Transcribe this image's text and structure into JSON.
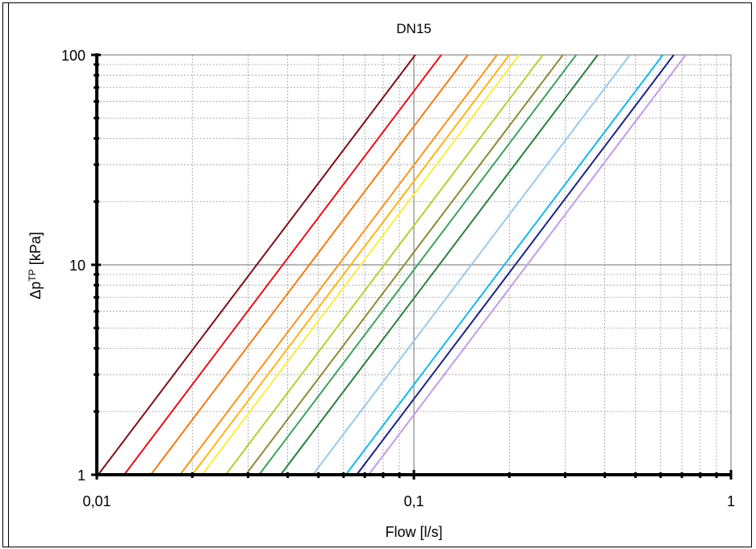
{
  "chart_data": {
    "type": "line",
    "title": "DN15",
    "xlabel": "Flow [l/s]",
    "ylabel_base": "Δp",
    "ylabel_sup": "TP",
    "ylabel_tail": " [kPa]",
    "x_scale": "log",
    "y_scale": "log",
    "xlim": [
      0.01,
      1
    ],
    "ylim": [
      1,
      100
    ],
    "x_ticks": [
      {
        "value": 0.01,
        "label": "0,01"
      },
      {
        "value": 0.1,
        "label": "0,1"
      },
      {
        "value": 1,
        "label": "1"
      }
    ],
    "y_ticks": [
      {
        "value": 1,
        "label": "1"
      },
      {
        "value": 10,
        "label": "10"
      },
      {
        "value": 100,
        "label": "100"
      }
    ],
    "grid": true,
    "series": [
      {
        "color": "#7b0f1a",
        "x": [
          0.0101,
          0.101
        ],
        "y": [
          1,
          100
        ]
      },
      {
        "color": "#e3101c",
        "x": [
          0.0122,
          0.122
        ],
        "y": [
          1,
          100
        ]
      },
      {
        "color": "#f07c10",
        "x": [
          0.0148,
          0.148
        ],
        "y": [
          1,
          100
        ]
      },
      {
        "color": "#f7941d",
        "x": [
          0.0183,
          0.183
        ],
        "y": [
          1,
          100
        ]
      },
      {
        "color": "#fdb515",
        "x": [
          0.02,
          0.2
        ],
        "y": [
          1,
          100
        ]
      },
      {
        "color": "#ffeb3b",
        "x": [
          0.0215,
          0.215
        ],
        "y": [
          1,
          100
        ]
      },
      {
        "color": "#b5cf2e",
        "x": [
          0.0255,
          0.255
        ],
        "y": [
          1,
          100
        ]
      },
      {
        "color": "#8f8a34",
        "x": [
          0.0295,
          0.295
        ],
        "y": [
          1,
          100
        ]
      },
      {
        "color": "#3fa060",
        "x": [
          0.0325,
          0.325
        ],
        "y": [
          1,
          100
        ]
      },
      {
        "color": "#2a7f3a",
        "x": [
          0.038,
          0.38
        ],
        "y": [
          1,
          100
        ]
      },
      {
        "color": "#99c9ef",
        "x": [
          0.048,
          0.48
        ],
        "y": [
          1,
          100
        ]
      },
      {
        "color": "#14b8e6",
        "x": [
          0.061,
          0.61
        ],
        "y": [
          1,
          100
        ]
      },
      {
        "color": "#1a237e",
        "x": [
          0.066,
          0.66
        ],
        "y": [
          1,
          100
        ]
      },
      {
        "color": "#c39be6",
        "x": [
          0.072,
          0.72
        ],
        "y": [
          1,
          100
        ]
      }
    ]
  }
}
